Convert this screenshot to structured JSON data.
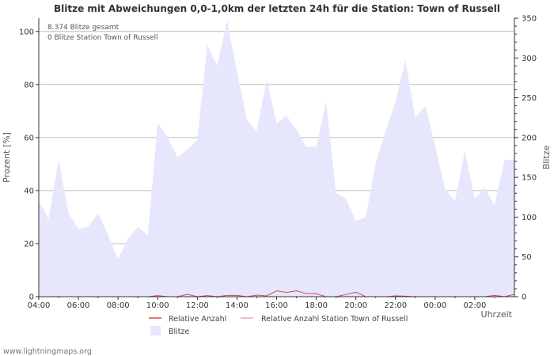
{
  "chart_data": {
    "type": "area",
    "title": "Blitze mit Abweichungen 0,0-1,0km der letzten 24h für die Station: Town of Russell",
    "annotations": [
      "8.374 Blitze gesamt",
      "0 Blitze Station Town of Russell"
    ],
    "xlabel": "Uhrzeit",
    "ylabel_left": "Prozent   [%]",
    "ylabel_right": "Blitze",
    "x_ticks": [
      "04:00",
      "06:00",
      "08:00",
      "10:00",
      "12:00",
      "14:00",
      "16:00",
      "18:00",
      "20:00",
      "22:00",
      "00:00",
      "02:00"
    ],
    "ylim_left": [
      0,
      105
    ],
    "y_ticks_left": [
      0,
      20,
      40,
      60,
      80,
      100
    ],
    "ylim_right": [
      0,
      350
    ],
    "y_ticks_right": [
      0,
      50,
      100,
      150,
      200,
      250,
      300,
      350
    ],
    "x_hours": [
      0,
      0.5,
      1,
      1.5,
      2,
      2.5,
      3,
      3.5,
      4,
      4.5,
      5,
      5.5,
      6,
      6.5,
      7,
      7.5,
      8,
      8.5,
      9,
      9.5,
      10,
      10.5,
      11,
      11.5,
      12,
      12.5,
      13,
      13.5,
      14,
      14.5,
      15,
      15.5,
      16,
      16.5,
      17,
      17.5,
      18,
      18.5,
      19,
      19.5,
      20,
      20.5,
      21,
      21.5,
      22,
      22.5,
      23,
      23.5,
      24
    ],
    "series": [
      {
        "name": "Blitze",
        "axis": "right",
        "color": "#e6e6fd",
        "values": [
          120,
          98,
          172,
          105,
          85,
          88,
          105,
          77,
          47,
          73,
          88,
          77,
          218,
          200,
          175,
          185,
          197,
          316,
          290,
          347,
          283,
          222,
          208,
          273,
          218,
          227,
          210,
          188,
          188,
          245,
          130,
          123,
          95,
          100,
          168,
          208,
          245,
          297,
          225,
          240,
          190,
          135,
          120,
          183,
          123,
          137,
          115,
          172,
          172
        ]
      },
      {
        "name": "Relative Anzahl",
        "axis": "left",
        "color": "#d24a4a",
        "values": [
          0,
          0,
          0,
          0,
          0,
          0,
          0,
          0,
          0,
          0,
          0,
          0,
          0.4,
          0,
          0,
          0.9,
          0,
          0.4,
          0,
          0.5,
          0.5,
          0,
          0.6,
          0.3,
          2.2,
          1.6,
          2.2,
          1.2,
          1.1,
          0,
          0,
          0.8,
          1.7,
          0,
          0,
          0,
          0.3,
          0.2,
          0,
          0,
          0,
          0,
          0,
          0,
          0,
          0,
          0.5,
          0,
          0.9
        ]
      },
      {
        "name": "Relative Anzahl Station Town of Russell",
        "axis": "left",
        "color": "#f0a8a8",
        "values": [
          0,
          0,
          0,
          0,
          0,
          0,
          0,
          0,
          0,
          0,
          0,
          0,
          0,
          0,
          0,
          0,
          0,
          0,
          0,
          0,
          0,
          0,
          0,
          0,
          0,
          0,
          0,
          0,
          0,
          0,
          0,
          0,
          0,
          0,
          0,
          0,
          0,
          0,
          0,
          0,
          0,
          0,
          0,
          0,
          0,
          0,
          0,
          0,
          0
        ]
      }
    ],
    "legend": [
      "Relative Anzahl",
      "Relative Anzahl Station Town of Russell",
      "Blitze"
    ]
  },
  "footer": "www.lightningmaps.org"
}
